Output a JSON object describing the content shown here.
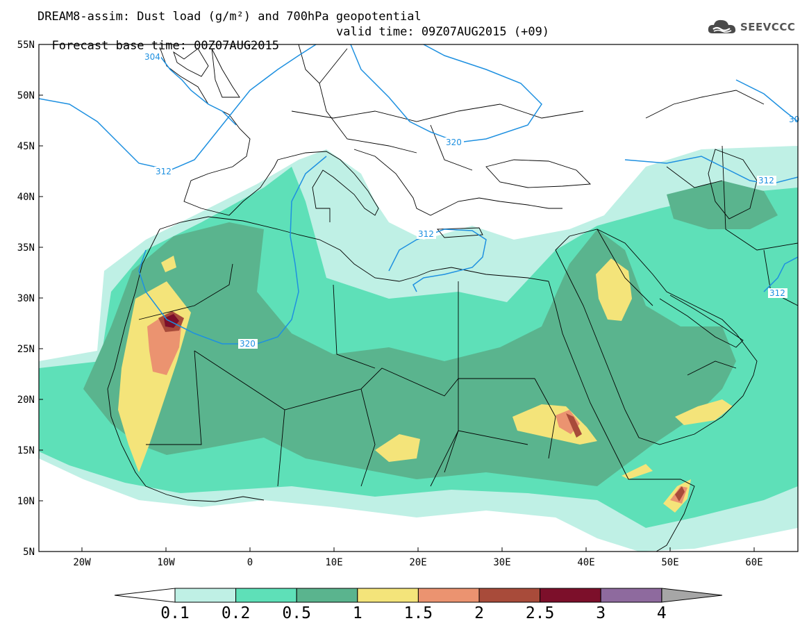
{
  "header": {
    "title_line1": "DREAM8-assim: Dust load (g/m²) and 700hPa geopotential",
    "title_line2": "Forecast base time: 00Z07AUG2015",
    "valid_time": "valid time: 09Z07AUG2015 (+09)"
  },
  "logo": {
    "text": "SEEVCCC",
    "icon": "cloud-icon"
  },
  "axes": {
    "lat_labels": [
      "55N",
      "50N",
      "45N",
      "40N",
      "35N",
      "30N",
      "25N",
      "20N",
      "15N",
      "10N",
      "5N"
    ],
    "lon_labels": [
      "20W",
      "10W",
      "0",
      "10E",
      "20E",
      "30E",
      "40E",
      "50E",
      "60E"
    ]
  },
  "geopotential_labels": [
    "304",
    "312",
    "320",
    "320",
    "312",
    "312",
    "312",
    "30"
  ],
  "colorbar": {
    "levels": [
      "0.1",
      "0.2",
      "0.5",
      "1",
      "1.5",
      "2",
      "2.5",
      "3",
      "4"
    ],
    "colors": [
      "#bff0e5",
      "#5ee0b8",
      "#5ab48e",
      "#f4e47a",
      "#eb9370",
      "#a84b3a",
      "#7c0f2a",
      "#8e6a9e",
      "#a6a6a6"
    ]
  },
  "colors": {
    "contour": "#1e90e0",
    "coast": "#000000"
  }
}
